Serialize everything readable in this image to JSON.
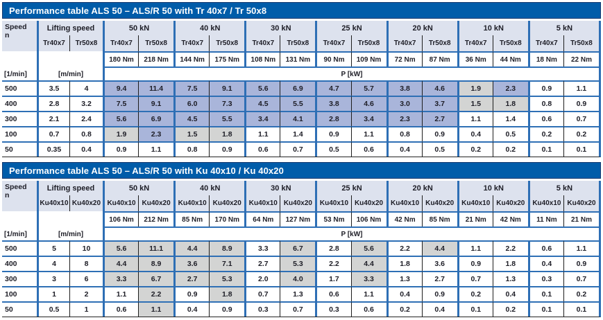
{
  "colors": {
    "title_bar": "#005ca9",
    "title_text": "#ffffff",
    "header_tint": "#dde2ee",
    "cell_blue": "#a9b5da",
    "cell_gray": "#d3d4d3",
    "line_blue": "#2e6fb5",
    "line_black": "#1c1c1c",
    "text": "#1d1d26"
  },
  "legend": {
    "w": "white",
    "b": "blue-highlight",
    "g": "gray-highlight"
  },
  "tables": [
    {
      "title": "Performance table ALS 50 – ALS/R 50 with Tr 40x7 / Tr 50x8",
      "speed_header": "Speed",
      "speed_sub": "n",
      "speed_unit": "[1/min]",
      "lifting_header": "Lifting speed",
      "lifting_unit": "[m/min]",
      "screw_a": "Tr40x7",
      "screw_b": "Tr50x8",
      "power_label": "P [kW]",
      "groups": [
        {
          "load": "50 kN",
          "torque_a": "180 Nm",
          "torque_b": "218 Nm"
        },
        {
          "load": "40 kN",
          "torque_a": "144 Nm",
          "torque_b": "175 Nm"
        },
        {
          "load": "30 kN",
          "torque_a": "108 Nm",
          "torque_b": "131 Nm"
        },
        {
          "load": "25 kN",
          "torque_a": "90 Nm",
          "torque_b": "109 Nm"
        },
        {
          "load": "20 kN",
          "torque_a": "72 Nm",
          "torque_b": "87 Nm"
        },
        {
          "load": "10 kN",
          "torque_a": "36 Nm",
          "torque_b": "44 Nm"
        },
        {
          "load": "5 kN",
          "torque_a": "18 Nm",
          "torque_b": "22 Nm"
        }
      ],
      "rows": [
        {
          "speed": "500",
          "lift_a": "3.5",
          "lift_b": "4",
          "values": [
            "9.4",
            "11.4",
            "7.5",
            "9.1",
            "5.6",
            "6.9",
            "4.7",
            "5.7",
            "3.8",
            "4.6",
            "1.9",
            "2.3",
            "0.9",
            "1.1"
          ],
          "marks": [
            "b",
            "b",
            "b",
            "b",
            "b",
            "b",
            "b",
            "b",
            "b",
            "b",
            "g",
            "b",
            "w",
            "w"
          ]
        },
        {
          "speed": "400",
          "lift_a": "2.8",
          "lift_b": "3.2",
          "values": [
            "7.5",
            "9.1",
            "6.0",
            "7.3",
            "4.5",
            "5.5",
            "3.8",
            "4.6",
            "3.0",
            "3.7",
            "1.5",
            "1.8",
            "0.8",
            "0.9"
          ],
          "marks": [
            "b",
            "b",
            "b",
            "b",
            "b",
            "b",
            "b",
            "b",
            "b",
            "b",
            "g",
            "g",
            "w",
            "w"
          ]
        },
        {
          "speed": "300",
          "lift_a": "2.1",
          "lift_b": "2.4",
          "values": [
            "5.6",
            "6.9",
            "4.5",
            "5.5",
            "3.4",
            "4.1",
            "2.8",
            "3.4",
            "2.3",
            "2.7",
            "1.1",
            "1.4",
            "0.6",
            "0.7"
          ],
          "marks": [
            "b",
            "b",
            "b",
            "b",
            "b",
            "b",
            "b",
            "b",
            "b",
            "b",
            "w",
            "w",
            "w",
            "w"
          ]
        },
        {
          "speed": "100",
          "lift_a": "0.7",
          "lift_b": "0.8",
          "values": [
            "1.9",
            "2.3",
            "1.5",
            "1.8",
            "1.1",
            "1.4",
            "0.9",
            "1.1",
            "0.8",
            "0.9",
            "0.4",
            "0.5",
            "0.2",
            "0.2"
          ],
          "marks": [
            "g",
            "b",
            "g",
            "g",
            "w",
            "w",
            "w",
            "w",
            "w",
            "w",
            "w",
            "w",
            "w",
            "w"
          ]
        },
        {
          "speed": "50",
          "lift_a": "0.35",
          "lift_b": "0.4",
          "values": [
            "0.9",
            "1.1",
            "0.8",
            "0.9",
            "0.6",
            "0.7",
            "0.5",
            "0.6",
            "0.4",
            "0.5",
            "0.2",
            "0.2",
            "0.1",
            "0.1"
          ],
          "marks": [
            "w",
            "w",
            "w",
            "w",
            "w",
            "w",
            "w",
            "w",
            "w",
            "w",
            "w",
            "w",
            "w",
            "w"
          ]
        }
      ]
    },
    {
      "title": "Performance table ALS 50 – ALS/R 50 with Ku 40x10 / Ku 40x20",
      "speed_header": "Speed",
      "speed_sub": "n",
      "speed_unit": "[1/min]",
      "lifting_header": "Lifting speed",
      "lifting_unit": "[m/min]",
      "screw_a": "Ku40x10",
      "screw_b": "Ku40x20",
      "power_label": "P [kW]",
      "groups": [
        {
          "load": "50 kN",
          "torque_a": "106 Nm",
          "torque_b": "212 Nm"
        },
        {
          "load": "40 kN",
          "torque_a": "85 Nm",
          "torque_b": "170 Nm"
        },
        {
          "load": "30 kN",
          "torque_a": "64 Nm",
          "torque_b": "127 Nm"
        },
        {
          "load": "25 kN",
          "torque_a": "53 Nm",
          "torque_b": "106 Nm"
        },
        {
          "load": "20 kN",
          "torque_a": "42 Nm",
          "torque_b": "85 Nm"
        },
        {
          "load": "10 kN",
          "torque_a": "21 Nm",
          "torque_b": "42 Nm"
        },
        {
          "load": "5 kN",
          "torque_a": "11 Nm",
          "torque_b": "21 Nm"
        }
      ],
      "rows": [
        {
          "speed": "500",
          "lift_a": "5",
          "lift_b": "10",
          "values": [
            "5.6",
            "11.1",
            "4.4",
            "8.9",
            "3.3",
            "6.7",
            "2.8",
            "5.6",
            "2.2",
            "4.4",
            "1.1",
            "2.2",
            "0.6",
            "1.1"
          ],
          "marks": [
            "g",
            "g",
            "g",
            "g",
            "w",
            "g",
            "w",
            "g",
            "w",
            "g",
            "w",
            "w",
            "w",
            "w"
          ]
        },
        {
          "speed": "400",
          "lift_a": "4",
          "lift_b": "8",
          "values": [
            "4.4",
            "8.9",
            "3.6",
            "7.1",
            "2.7",
            "5.3",
            "2.2",
            "4.4",
            "1.8",
            "3.6",
            "0.9",
            "1.8",
            "0.4",
            "0.9"
          ],
          "marks": [
            "g",
            "g",
            "g",
            "g",
            "w",
            "g",
            "w",
            "g",
            "w",
            "w",
            "w",
            "w",
            "w",
            "w"
          ]
        },
        {
          "speed": "300",
          "lift_a": "3",
          "lift_b": "6",
          "values": [
            "3.3",
            "6.7",
            "2.7",
            "5.3",
            "2.0",
            "4.0",
            "1.7",
            "3.3",
            "1.3",
            "2.7",
            "0.7",
            "1.3",
            "0.3",
            "0.7"
          ],
          "marks": [
            "g",
            "g",
            "g",
            "g",
            "w",
            "g",
            "w",
            "g",
            "w",
            "w",
            "w",
            "w",
            "w",
            "w"
          ]
        },
        {
          "speed": "100",
          "lift_a": "1",
          "lift_b": "2",
          "values": [
            "1.1",
            "2.2",
            "0.9",
            "1.8",
            "0.7",
            "1.3",
            "0.6",
            "1.1",
            "0.4",
            "0.9",
            "0.2",
            "0.4",
            "0.1",
            "0.2"
          ],
          "marks": [
            "w",
            "g",
            "w",
            "g",
            "w",
            "w",
            "w",
            "w",
            "w",
            "w",
            "w",
            "w",
            "w",
            "w"
          ]
        },
        {
          "speed": "50",
          "lift_a": "0.5",
          "lift_b": "1",
          "values": [
            "0.6",
            "1.1",
            "0.4",
            "0.9",
            "0.3",
            "0.7",
            "0.3",
            "0.6",
            "0.2",
            "0.4",
            "0.1",
            "0.2",
            "0.1",
            "0.1"
          ],
          "marks": [
            "w",
            "g",
            "w",
            "w",
            "w",
            "w",
            "w",
            "w",
            "w",
            "w",
            "w",
            "w",
            "w",
            "w"
          ]
        }
      ]
    }
  ]
}
